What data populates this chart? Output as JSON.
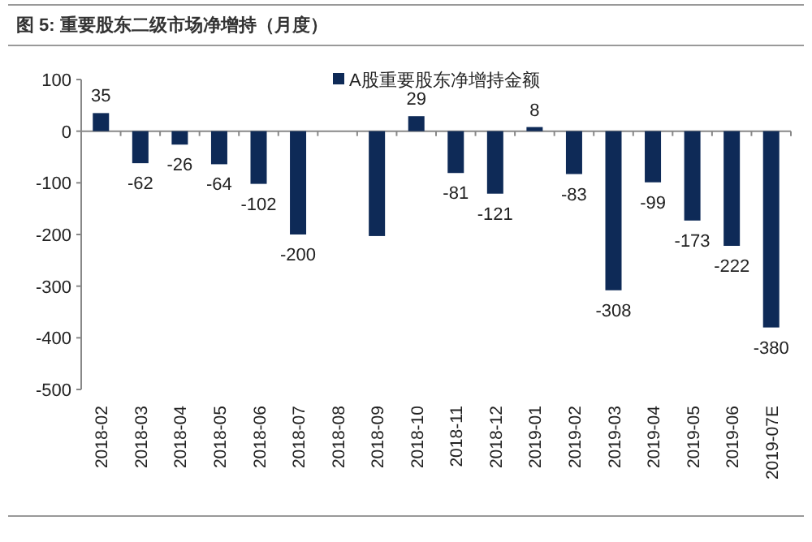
{
  "chart_data": {
    "type": "bar",
    "title": "图 5:  重要股东二级市场净增持（月度）",
    "categories": [
      "2018-02",
      "2018-03",
      "2018-04",
      "2018-05",
      "2018-06",
      "2018-07",
      "2018-08",
      "2018-09",
      "2018-10",
      "2018-11",
      "2018-12",
      "2019-01",
      "2019-02",
      "2019-03",
      "2019-04",
      "2019-05",
      "2019-06",
      "2019-07E"
    ],
    "series": [
      {
        "name": "A股重要股东净增持金额",
        "color": "#0e2a57",
        "values": [
          35,
          -62,
          -26,
          -64,
          -102,
          -200,
          null,
          -203,
          29,
          -81,
          -121,
          8,
          -83,
          -308,
          -99,
          -173,
          -222,
          -380
        ],
        "value_labels": [
          "35",
          "-62",
          "-26",
          "-64",
          "-102",
          "-200",
          null,
          null,
          "29",
          "-81",
          "-121",
          "8",
          "-83",
          "-308",
          "-99",
          "-173",
          "-222",
          "-380"
        ]
      }
    ],
    "ylim": [
      -500,
      100
    ],
    "yticks": [
      -500,
      -400,
      -300,
      -200,
      -100,
      0,
      100
    ],
    "legend": "top"
  }
}
